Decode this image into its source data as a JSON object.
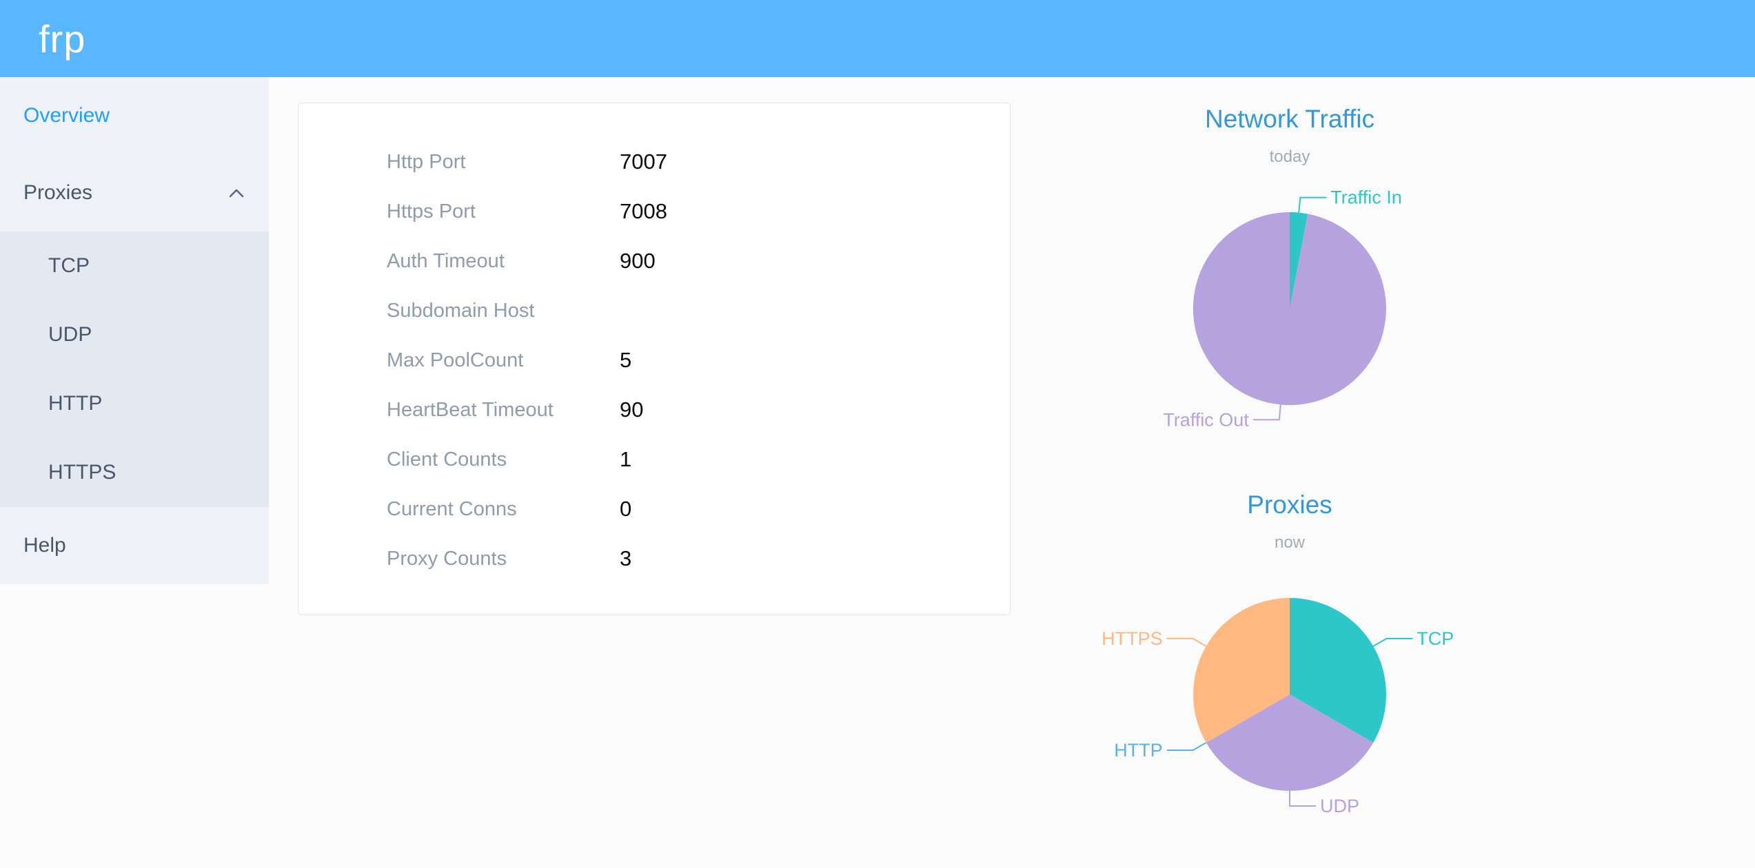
{
  "header": {
    "logo": "frp",
    "background": "#58b7ff"
  },
  "sidebar": {
    "items": [
      {
        "label": "Overview",
        "active": true
      },
      {
        "label": "Proxies",
        "expanded": true,
        "children": [
          "TCP",
          "UDP",
          "HTTP",
          "HTTPS"
        ]
      },
      {
        "label": "Help"
      }
    ]
  },
  "server_info": {
    "rows": [
      {
        "label": "Http Port",
        "value": "7007"
      },
      {
        "label": "Https Port",
        "value": "7008"
      },
      {
        "label": "Auth Timeout",
        "value": "900"
      },
      {
        "label": "Subdomain Host",
        "value": ""
      },
      {
        "label": "Max PoolCount",
        "value": "5"
      },
      {
        "label": "HeartBeat Timeout",
        "value": "90"
      },
      {
        "label": "Client Counts",
        "value": "1"
      },
      {
        "label": "Current Conns",
        "value": "0"
      },
      {
        "label": "Proxy Counts",
        "value": "3"
      }
    ]
  },
  "chart_data": [
    {
      "type": "pie",
      "title": "Network Traffic",
      "subtitle": "today",
      "legend_position": "none",
      "values_are": "share_percent_estimated_from_pixels",
      "series": [
        {
          "name": "Traffic In",
          "value": 3,
          "color": "#2ec7c9"
        },
        {
          "name": "Traffic Out",
          "value": 97,
          "color": "#b6a2de"
        }
      ]
    },
    {
      "type": "pie",
      "title": "Proxies",
      "subtitle": "now",
      "legend_position": "none",
      "values_are": "proxy_counts",
      "series": [
        {
          "name": "TCP",
          "value": 1,
          "color": "#2ec7c9"
        },
        {
          "name": "UDP",
          "value": 1,
          "color": "#b6a2de"
        },
        {
          "name": "HTTP",
          "value": 0,
          "color": "#5ab1ef"
        },
        {
          "name": "HTTPS",
          "value": 1,
          "color": "#ffb980"
        }
      ]
    }
  ],
  "colors": {
    "header_background": "#58b7ff",
    "active_menu_item": "#20a0ff",
    "chart_title_blue": "#3398db",
    "sidebar_background": "#eef1f6",
    "submenu_background": "#e4e8f1"
  }
}
